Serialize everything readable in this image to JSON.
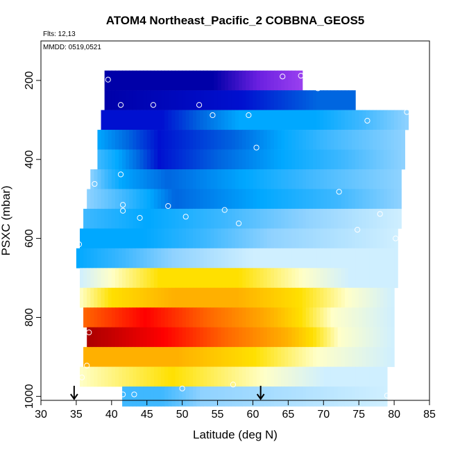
{
  "chart_data": {
    "type": "heatmap",
    "title": "ATOM4 Northeast_Pacific_2 COBBNA_GEOS5",
    "annotations": [
      "Flts: 12,13",
      "MMDD: 0519,0521"
    ],
    "xlabel": "Latitude (deg N)",
    "ylabel": "PSXC (mbar)",
    "xlim": [
      30,
      85
    ],
    "ylim": [
      1010,
      100
    ],
    "y_reversed": true,
    "x_ticks": [
      30,
      35,
      40,
      45,
      50,
      55,
      60,
      65,
      70,
      75,
      80,
      85
    ],
    "y_ticks": [
      200,
      400,
      600,
      800,
      1000
    ],
    "arrows_at_latitude": [
      34.7,
      61.1
    ],
    "color_scale": [
      "#5d0000",
      "#aa0000",
      "#ff0000",
      "#ff6600",
      "#ffb000",
      "#ffe000",
      "#ffffc8",
      "#cfefff",
      "#8fd2ff",
      "#3fb8ff",
      "#00a8ff",
      "#0066e0",
      "#0010d0",
      "#0000a8",
      "#6a20e0",
      "#9a40f0"
    ],
    "layers": [
      {
        "p": 200,
        "lat_start": 39.0,
        "lat_end": 67.0,
        "stops": [
          [
            0,
            13
          ],
          [
            0.55,
            13
          ],
          [
            1,
            15
          ]
        ]
      },
      {
        "p": 250,
        "lat_start": 39.0,
        "lat_end": 74.5,
        "stops": [
          [
            0,
            13
          ],
          [
            0.55,
            12
          ],
          [
            0.85,
            11
          ],
          [
            1,
            11
          ]
        ]
      },
      {
        "p": 300,
        "lat_start": 38.5,
        "lat_end": 82.0,
        "stops": [
          [
            0,
            12
          ],
          [
            0.2,
            12
          ],
          [
            0.45,
            10
          ],
          [
            0.7,
            10
          ],
          [
            0.85,
            9
          ],
          [
            1,
            8
          ]
        ]
      },
      {
        "p": 350,
        "lat_start": 38.0,
        "lat_end": 81.5,
        "stops": [
          [
            0,
            10
          ],
          [
            0.2,
            12
          ],
          [
            0.45,
            11
          ],
          [
            0.75,
            9
          ],
          [
            1,
            8
          ]
        ]
      },
      {
        "p": 400,
        "lat_start": 38.0,
        "lat_end": 81.5,
        "stops": [
          [
            0,
            9
          ],
          [
            0.2,
            12
          ],
          [
            0.4,
            11
          ],
          [
            0.6,
            10
          ],
          [
            0.8,
            9
          ],
          [
            1,
            8
          ]
        ]
      },
      {
        "p": 450,
        "lat_start": 37.0,
        "lat_end": 81.0,
        "stops": [
          [
            0,
            8
          ],
          [
            0.1,
            10
          ],
          [
            0.25,
            11
          ],
          [
            0.5,
            10
          ],
          [
            0.7,
            9
          ],
          [
            1,
            8
          ]
        ]
      },
      {
        "p": 500,
        "lat_start": 36.5,
        "lat_end": 81.0,
        "stops": [
          [
            0,
            8
          ],
          [
            0.12,
            9
          ],
          [
            0.28,
            11
          ],
          [
            0.55,
            10
          ],
          [
            0.8,
            9
          ],
          [
            1,
            8
          ]
        ]
      },
      {
        "p": 550,
        "lat_start": 36.0,
        "lat_end": 81.0,
        "stops": [
          [
            0,
            9
          ],
          [
            0.2,
            10
          ],
          [
            0.45,
            9
          ],
          [
            0.7,
            8
          ],
          [
            1,
            7
          ]
        ]
      },
      {
        "p": 600,
        "lat_start": 35.5,
        "lat_end": 80.5,
        "stops": [
          [
            0,
            10
          ],
          [
            0.2,
            10
          ],
          [
            0.4,
            9
          ],
          [
            0.6,
            8
          ],
          [
            1,
            7
          ]
        ]
      },
      {
        "p": 650,
        "lat_start": 35.0,
        "lat_end": 80.5,
        "stops": [
          [
            0,
            10
          ],
          [
            0.15,
            9
          ],
          [
            0.3,
            8
          ],
          [
            0.55,
            7
          ],
          [
            1,
            7
          ]
        ]
      },
      {
        "p": 700,
        "lat_start": 35.5,
        "lat_end": 80.5,
        "stops": [
          [
            0,
            7
          ],
          [
            0.1,
            6
          ],
          [
            0.25,
            5
          ],
          [
            0.5,
            5
          ],
          [
            0.7,
            6
          ],
          [
            0.85,
            7
          ],
          [
            1,
            7
          ]
        ]
      },
      {
        "p": 750,
        "lat_start": 35.5,
        "lat_end": 80.0,
        "stops": [
          [
            0,
            6
          ],
          [
            0.1,
            5
          ],
          [
            0.3,
            4
          ],
          [
            0.5,
            4
          ],
          [
            0.7,
            5
          ],
          [
            0.85,
            6
          ],
          [
            1,
            7
          ]
        ]
      },
      {
        "p": 800,
        "lat_start": 36.0,
        "lat_end": 80.0,
        "stops": [
          [
            0,
            3
          ],
          [
            0.2,
            2
          ],
          [
            0.4,
            3
          ],
          [
            0.6,
            4
          ],
          [
            0.8,
            6
          ],
          [
            1,
            7
          ]
        ]
      },
      {
        "p": 850,
        "lat_start": 36.5,
        "lat_end": 80.0,
        "stops": [
          [
            0,
            1
          ],
          [
            0.25,
            2
          ],
          [
            0.45,
            3
          ],
          [
            0.65,
            4
          ],
          [
            0.82,
            6
          ],
          [
            1,
            7
          ]
        ]
      },
      {
        "p": 900,
        "lat_start": 36.0,
        "lat_end": 80.0,
        "stops": [
          [
            0,
            4
          ],
          [
            0.3,
            4
          ],
          [
            0.55,
            5
          ],
          [
            0.75,
            6
          ],
          [
            1,
            7
          ]
        ]
      },
      {
        "p": 950,
        "lat_start": 35.5,
        "lat_end": 79.0,
        "stops": [
          [
            0,
            6
          ],
          [
            0.3,
            5
          ],
          [
            0.6,
            6
          ],
          [
            0.8,
            7
          ],
          [
            1,
            7
          ]
        ]
      },
      {
        "p": 1000,
        "lat_start": 41.5,
        "lat_end": 79.0,
        "stops": [
          [
            0,
            9
          ],
          [
            0.15,
            9
          ],
          [
            0.3,
            8
          ],
          [
            1,
            7
          ]
        ]
      }
    ],
    "points": [
      [
        39.5,
        198
      ],
      [
        64.2,
        190
      ],
      [
        66.8,
        188
      ],
      [
        69.2,
        220
      ],
      [
        41.3,
        262
      ],
      [
        45.9,
        262
      ],
      [
        52.4,
        262
      ],
      [
        54.3,
        288
      ],
      [
        59.4,
        288
      ],
      [
        76.2,
        302
      ],
      [
        81.8,
        280
      ],
      [
        60.5,
        370
      ],
      [
        41.3,
        438
      ],
      [
        37.6,
        462
      ],
      [
        72.2,
        482
      ],
      [
        41.6,
        515
      ],
      [
        41.6,
        530
      ],
      [
        48.0,
        518
      ],
      [
        44.0,
        548
      ],
      [
        50.5,
        545
      ],
      [
        56.0,
        528
      ],
      [
        58.0,
        562
      ],
      [
        78.0,
        538
      ],
      [
        74.8,
        578
      ],
      [
        80.2,
        600
      ],
      [
        35.4,
        615
      ],
      [
        36.8,
        838
      ],
      [
        36.5,
        922
      ],
      [
        35.8,
        952
      ],
      [
        57.2,
        970
      ],
      [
        50.0,
        980
      ],
      [
        41.6,
        995
      ],
      [
        43.2,
        995
      ],
      [
        79.0,
        998
      ]
    ]
  }
}
